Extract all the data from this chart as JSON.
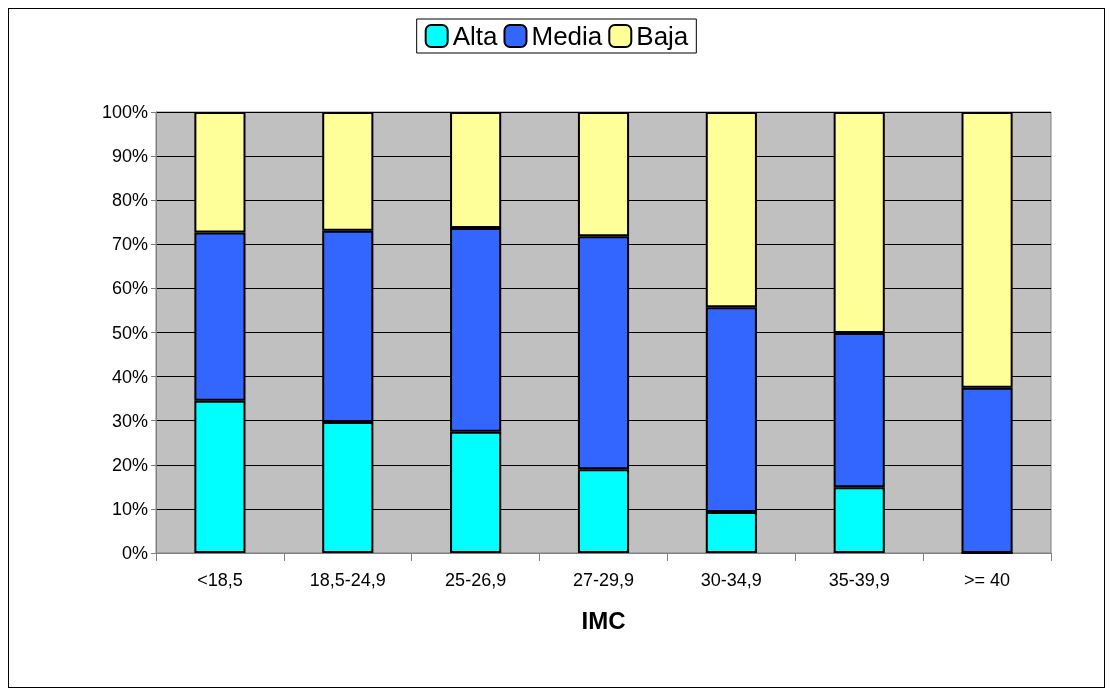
{
  "chart_data": {
    "type": "bar",
    "stacked": true,
    "xlabel": "IMC",
    "categories": [
      "<18,5",
      "18,5-24,9",
      "25-26,9",
      "27-29,9",
      "30-34,9",
      "35-39,9",
      ">= 40"
    ],
    "series": [
      {
        "name": "Alta",
        "color": "#00ffff",
        "values": [
          34.5,
          29.7,
          27.5,
          19.0,
          9.3,
          14.9,
          0
        ]
      },
      {
        "name": "Media",
        "color": "#3366ff",
        "values": [
          38.2,
          43.4,
          46.2,
          52.8,
          46.4,
          35.0,
          37.5
        ]
      },
      {
        "name": "Baja",
        "color": "#ffff99",
        "values": [
          27.3,
          26.9,
          26.3,
          28.2,
          44.3,
          50.1,
          62.5
        ]
      }
    ],
    "ylim": [
      0,
      100
    ],
    "yticks": [
      {
        "value": 0,
        "label": "0%"
      },
      {
        "value": 10,
        "label": "10%"
      },
      {
        "value": 20,
        "label": "20%"
      },
      {
        "value": 30,
        "label": "30%"
      },
      {
        "value": 40,
        "label": "40%"
      },
      {
        "value": 50,
        "label": "50%"
      },
      {
        "value": 60,
        "label": "60%"
      },
      {
        "value": 70,
        "label": "70%"
      },
      {
        "value": 80,
        "label": "80%"
      },
      {
        "value": 90,
        "label": "90%"
      },
      {
        "value": 100,
        "label": "100%"
      }
    ],
    "grid": "y",
    "legend": "top"
  }
}
